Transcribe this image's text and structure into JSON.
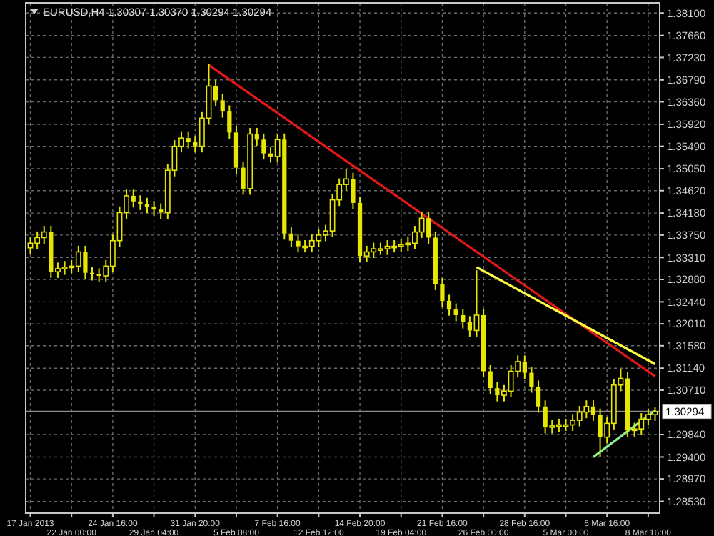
{
  "chart_data": {
    "type": "candlestick",
    "title": "EURUSD,H4 1.30307 1.30370 1.30294 1.30294",
    "color": "#e6e600",
    "grid": true,
    "categories": [
      "17 Jan 2013",
      null,
      null,
      null,
      null,
      null,
      "22 Jan 00:00",
      null,
      null,
      null,
      null,
      null,
      "24 Jan 16:00",
      null,
      null,
      null,
      null,
      null,
      "29 Jan 04:00",
      null,
      null,
      null,
      null,
      null,
      "31 Jan 20:00",
      null,
      null,
      null,
      null,
      null,
      "5 Feb 08:00",
      null,
      null,
      null,
      null,
      null,
      "7 Feb 16:00",
      null,
      null,
      null,
      null,
      null,
      "12 Feb 12:00",
      null,
      null,
      null,
      null,
      null,
      "14 Feb 20:00",
      null,
      null,
      null,
      null,
      null,
      "19 Feb 04:00",
      null,
      null,
      null,
      null,
      null,
      "21 Feb 16:00",
      null,
      null,
      null,
      null,
      null,
      "26 Feb 00:00",
      null,
      null,
      null,
      null,
      null,
      "28 Feb 16:00",
      null,
      null,
      null,
      null,
      null,
      "5 Mar 00:00",
      null,
      null,
      null,
      null,
      null,
      "6 Mar 16:00",
      null,
      null,
      null,
      null,
      null,
      "8 Mar 16:00",
      null
    ],
    "ohlc": [
      [
        1.335,
        1.3371,
        1.3338,
        1.3359
      ],
      [
        1.3359,
        1.3382,
        1.3347,
        1.337
      ],
      [
        1.337,
        1.3393,
        1.3358,
        1.3381
      ],
      [
        1.3381,
        1.3393,
        1.3291,
        1.3303
      ],
      [
        1.3303,
        1.3321,
        1.3291,
        1.3309
      ],
      [
        1.3309,
        1.3324,
        1.3297,
        1.3312
      ],
      [
        1.3312,
        1.3326,
        1.33,
        1.3314
      ],
      [
        1.3314,
        1.3354,
        1.3302,
        1.3342
      ],
      [
        1.3342,
        1.3354,
        1.3289,
        1.3301
      ],
      [
        1.3301,
        1.3313,
        1.3286,
        1.3298
      ],
      [
        1.3298,
        1.331,
        1.3283,
        1.3295
      ],
      [
        1.3295,
        1.3326,
        1.3283,
        1.3314
      ],
      [
        1.3314,
        1.3376,
        1.3302,
        1.3364
      ],
      [
        1.3364,
        1.3431,
        1.3352,
        1.3419
      ],
      [
        1.3419,
        1.3464,
        1.3407,
        1.3452
      ],
      [
        1.3452,
        1.3464,
        1.3429,
        1.3441
      ],
      [
        1.3441,
        1.3453,
        1.3424,
        1.3436
      ],
      [
        1.3436,
        1.3448,
        1.3418,
        1.343
      ],
      [
        1.343,
        1.3442,
        1.3413,
        1.3425
      ],
      [
        1.3425,
        1.3437,
        1.3407,
        1.3419
      ],
      [
        1.3419,
        1.3514,
        1.3407,
        1.3502
      ],
      [
        1.3502,
        1.3561,
        1.349,
        1.3549
      ],
      [
        1.3549,
        1.3577,
        1.3537,
        1.3565
      ],
      [
        1.3565,
        1.3577,
        1.3545,
        1.3557
      ],
      [
        1.3557,
        1.3569,
        1.3537,
        1.3549
      ],
      [
        1.3549,
        1.3616,
        1.3537,
        1.3604
      ],
      [
        1.3604,
        1.371,
        1.3592,
        1.3667
      ],
      [
        1.3667,
        1.3679,
        1.3627,
        1.3639
      ],
      [
        1.3639,
        1.3651,
        1.3605,
        1.3617
      ],
      [
        1.3617,
        1.3629,
        1.3564,
        1.3576
      ],
      [
        1.3576,
        1.3588,
        1.3495,
        1.3507
      ],
      [
        1.3507,
        1.3519,
        1.3454,
        1.3466
      ],
      [
        1.3466,
        1.3585,
        1.3454,
        1.3573
      ],
      [
        1.3573,
        1.3585,
        1.355,
        1.3562
      ],
      [
        1.3562,
        1.3574,
        1.3523,
        1.3535
      ],
      [
        1.3535,
        1.3547,
        1.3517,
        1.3529
      ],
      [
        1.3529,
        1.3574,
        1.3517,
        1.3562
      ],
      [
        1.3562,
        1.3574,
        1.3366,
        1.3378
      ],
      [
        1.3378,
        1.339,
        1.3352,
        1.3364
      ],
      [
        1.3364,
        1.3376,
        1.3341,
        1.3353
      ],
      [
        1.3353,
        1.3365,
        1.3341,
        1.3353
      ],
      [
        1.3353,
        1.3376,
        1.3341,
        1.3364
      ],
      [
        1.3364,
        1.3387,
        1.3352,
        1.3375
      ],
      [
        1.3375,
        1.3395,
        1.3363,
        1.3383
      ],
      [
        1.3383,
        1.3456,
        1.3371,
        1.3444
      ],
      [
        1.3444,
        1.3486,
        1.3432,
        1.3474
      ],
      [
        1.3474,
        1.3505,
        1.3462,
        1.3485
      ],
      [
        1.3485,
        1.3497,
        1.3426,
        1.3438
      ],
      [
        1.3438,
        1.345,
        1.3322,
        1.3334
      ],
      [
        1.3334,
        1.3354,
        1.3322,
        1.3342
      ],
      [
        1.3342,
        1.336,
        1.333,
        1.3348
      ],
      [
        1.3348,
        1.336,
        1.3336,
        1.3348
      ],
      [
        1.3348,
        1.3365,
        1.3336,
        1.3353
      ],
      [
        1.3353,
        1.3365,
        1.3341,
        1.3353
      ],
      [
        1.3353,
        1.3368,
        1.3341,
        1.3356
      ],
      [
        1.3356,
        1.3371,
        1.3344,
        1.3359
      ],
      [
        1.3359,
        1.3393,
        1.3347,
        1.3381
      ],
      [
        1.3381,
        1.342,
        1.3369,
        1.3408
      ],
      [
        1.3408,
        1.342,
        1.3358,
        1.337
      ],
      [
        1.337,
        1.3382,
        1.3267,
        1.3279
      ],
      [
        1.3279,
        1.3291,
        1.3234,
        1.3246
      ],
      [
        1.3246,
        1.3258,
        1.3217,
        1.3229
      ],
      [
        1.3229,
        1.3241,
        1.3206,
        1.3218
      ],
      [
        1.3218,
        1.323,
        1.3192,
        1.3204
      ],
      [
        1.3204,
        1.3216,
        1.3176,
        1.3188
      ],
      [
        1.3188,
        1.3306,
        1.3176,
        1.3218
      ],
      [
        1.3218,
        1.323,
        1.3096,
        1.3108
      ],
      [
        1.3108,
        1.312,
        1.3063,
        1.3075
      ],
      [
        1.3075,
        1.3087,
        1.3049,
        1.3061
      ],
      [
        1.3061,
        1.3081,
        1.3049,
        1.3069
      ],
      [
        1.3069,
        1.312,
        1.3057,
        1.3108
      ],
      [
        1.3108,
        1.3139,
        1.3096,
        1.3127
      ],
      [
        1.3127,
        1.3139,
        1.3093,
        1.3105
      ],
      [
        1.3105,
        1.3117,
        1.3066,
        1.3078
      ],
      [
        1.3078,
        1.309,
        1.3027,
        1.3039
      ],
      [
        1.3039,
        1.3051,
        1.2986,
        1.2998
      ],
      [
        1.2998,
        1.3013,
        1.2986,
        1.3001
      ],
      [
        1.3001,
        1.3015,
        1.2989,
        1.3003
      ],
      [
        1.3003,
        1.3015,
        1.2991,
        1.3003
      ],
      [
        1.3003,
        1.3024,
        1.2991,
        1.3012
      ],
      [
        1.3012,
        1.304,
        1.3,
        1.3028
      ],
      [
        1.3028,
        1.3051,
        1.3016,
        1.3039
      ],
      [
        1.3039,
        1.3051,
        1.3011,
        1.3023
      ],
      [
        1.3023,
        1.3035,
        1.294,
        1.2979
      ],
      [
        1.2979,
        1.3018,
        1.2967,
        1.3006
      ],
      [
        1.3006,
        1.3093,
        1.2994,
        1.3081
      ],
      [
        1.3081,
        1.3113,
        1.3069,
        1.3094
      ],
      [
        1.3094,
        1.3106,
        1.298,
        1.2992
      ],
      [
        1.2992,
        1.3007,
        1.298,
        1.2995
      ],
      [
        1.2995,
        1.3026,
        1.2983,
        1.3014
      ],
      [
        1.3014,
        1.3035,
        1.3002,
        1.3023
      ],
      [
        1.3023,
        1.3037,
        1.3011,
        1.3029
      ]
    ],
    "series": [
      {
        "type": "line",
        "color": "#e01818",
        "values": [
          null,
          null,
          null,
          null,
          null,
          null,
          null,
          null,
          null,
          null,
          null,
          null,
          null,
          null,
          null,
          null,
          null,
          null,
          null,
          null,
          null,
          null,
          null,
          null,
          null,
          null,
          1.3708,
          null,
          null,
          null,
          null,
          null,
          null,
          null,
          null,
          null,
          null,
          null,
          null,
          null,
          null,
          null,
          null,
          null,
          null,
          null,
          null,
          null,
          null,
          null,
          null,
          null,
          null,
          null,
          null,
          null,
          null,
          null,
          null,
          null,
          null,
          null,
          null,
          null,
          null,
          null,
          null,
          null,
          null,
          null,
          null,
          null,
          null,
          null,
          null,
          null,
          null,
          null,
          null,
          null,
          null,
          null,
          null,
          null,
          null,
          null,
          null,
          null,
          null,
          null,
          null,
          1.3098
        ]
      },
      {
        "type": "line",
        "color": "#ffff40",
        "values": [
          null,
          null,
          null,
          null,
          null,
          null,
          null,
          null,
          null,
          null,
          null,
          null,
          null,
          null,
          null,
          null,
          null,
          null,
          null,
          null,
          null,
          null,
          null,
          null,
          null,
          null,
          null,
          null,
          null,
          null,
          null,
          null,
          null,
          null,
          null,
          null,
          null,
          null,
          null,
          null,
          null,
          null,
          null,
          null,
          null,
          null,
          null,
          null,
          null,
          null,
          null,
          null,
          null,
          null,
          null,
          null,
          null,
          null,
          null,
          null,
          null,
          null,
          null,
          null,
          null,
          1.3312,
          null,
          null,
          null,
          null,
          null,
          null,
          null,
          null,
          null,
          null,
          null,
          null,
          null,
          null,
          null,
          null,
          null,
          null,
          null,
          null,
          null,
          null,
          null,
          null,
          null,
          1.3122
        ]
      },
      {
        "type": "line",
        "color": "#90ee90",
        "values": [
          null,
          null,
          null,
          null,
          null,
          null,
          null,
          null,
          null,
          null,
          null,
          null,
          null,
          null,
          null,
          null,
          null,
          null,
          null,
          null,
          null,
          null,
          null,
          null,
          null,
          null,
          null,
          null,
          null,
          null,
          null,
          null,
          null,
          null,
          null,
          null,
          null,
          null,
          null,
          null,
          null,
          null,
          null,
          null,
          null,
          null,
          null,
          null,
          null,
          null,
          null,
          null,
          null,
          null,
          null,
          null,
          null,
          null,
          null,
          null,
          null,
          null,
          null,
          null,
          null,
          null,
          null,
          null,
          null,
          null,
          null,
          null,
          null,
          null,
          null,
          null,
          null,
          null,
          null,
          null,
          null,
          null,
          1.294,
          null,
          null,
          null,
          null,
          null,
          null,
          null,
          null,
          1.3031
        ]
      }
    ],
    "ylim": [
      1.283,
      1.383
    ],
    "yticks": [
      {
        "value": 1.381,
        "label": "1.38100"
      },
      {
        "value": 1.3766,
        "label": "1.37660"
      },
      {
        "value": 1.3723,
        "label": "1.37230"
      },
      {
        "value": 1.3679,
        "label": "1.36790"
      },
      {
        "value": 1.3636,
        "label": "1.36360"
      },
      {
        "value": 1.3592,
        "label": "1.35920"
      },
      {
        "value": 1.3549,
        "label": "1.35490"
      },
      {
        "value": 1.3505,
        "label": "1.35050"
      },
      {
        "value": 1.3462,
        "label": "1.34620"
      },
      {
        "value": 1.3418,
        "label": "1.34180"
      },
      {
        "value": 1.3375,
        "label": "1.33750"
      },
      {
        "value": 1.3331,
        "label": "1.33310"
      },
      {
        "value": 1.3288,
        "label": "1.32880"
      },
      {
        "value": 1.3244,
        "label": "1.32440"
      },
      {
        "value": 1.3201,
        "label": "1.32010"
      },
      {
        "value": 1.3158,
        "label": "1.31580"
      },
      {
        "value": 1.3114,
        "label": "1.31140"
      },
      {
        "value": 1.3071,
        "label": "1.30710"
      },
      {
        "value": 1.2984,
        "label": "1.29840"
      },
      {
        "value": 1.294,
        "label": "1.29400"
      },
      {
        "value": 1.2897,
        "label": "1.28970"
      },
      {
        "value": 1.2853,
        "label": "1.28530"
      }
    ],
    "ref_lines": [
      {
        "axis": "y",
        "value": 1.30294,
        "label": "1.30294",
        "color": "#8c8c8c"
      }
    ]
  }
}
